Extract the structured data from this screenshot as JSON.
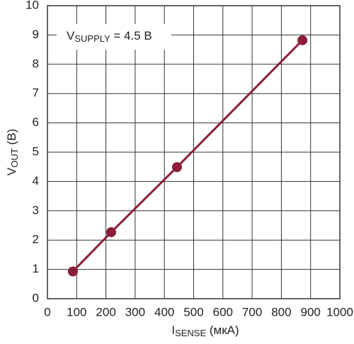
{
  "chart_data": {
    "type": "line",
    "x_label": {
      "main": "I",
      "sub": "SENSE",
      "unit": " (мкА)"
    },
    "y_label": {
      "main": "V",
      "sub": "OUT",
      "unit": " (В)"
    },
    "annotation": {
      "main": "V",
      "sub": "SUPPLY",
      "rest": " = 4.5 В"
    },
    "x": [
      87,
      218,
      443,
      872
    ],
    "series": [
      {
        "color": "#8c1d36",
        "values": [
          0.93,
          2.27,
          4.49,
          8.82
        ]
      }
    ],
    "xlim": [
      0,
      1000
    ],
    "xticks": [
      0,
      100,
      200,
      300,
      400,
      500,
      600,
      700,
      800,
      900,
      1000
    ],
    "ylim": [
      0,
      10
    ],
    "yticks": [
      0,
      1,
      2,
      3,
      4,
      5,
      6,
      7,
      8,
      9,
      10
    ],
    "grid": true
  }
}
